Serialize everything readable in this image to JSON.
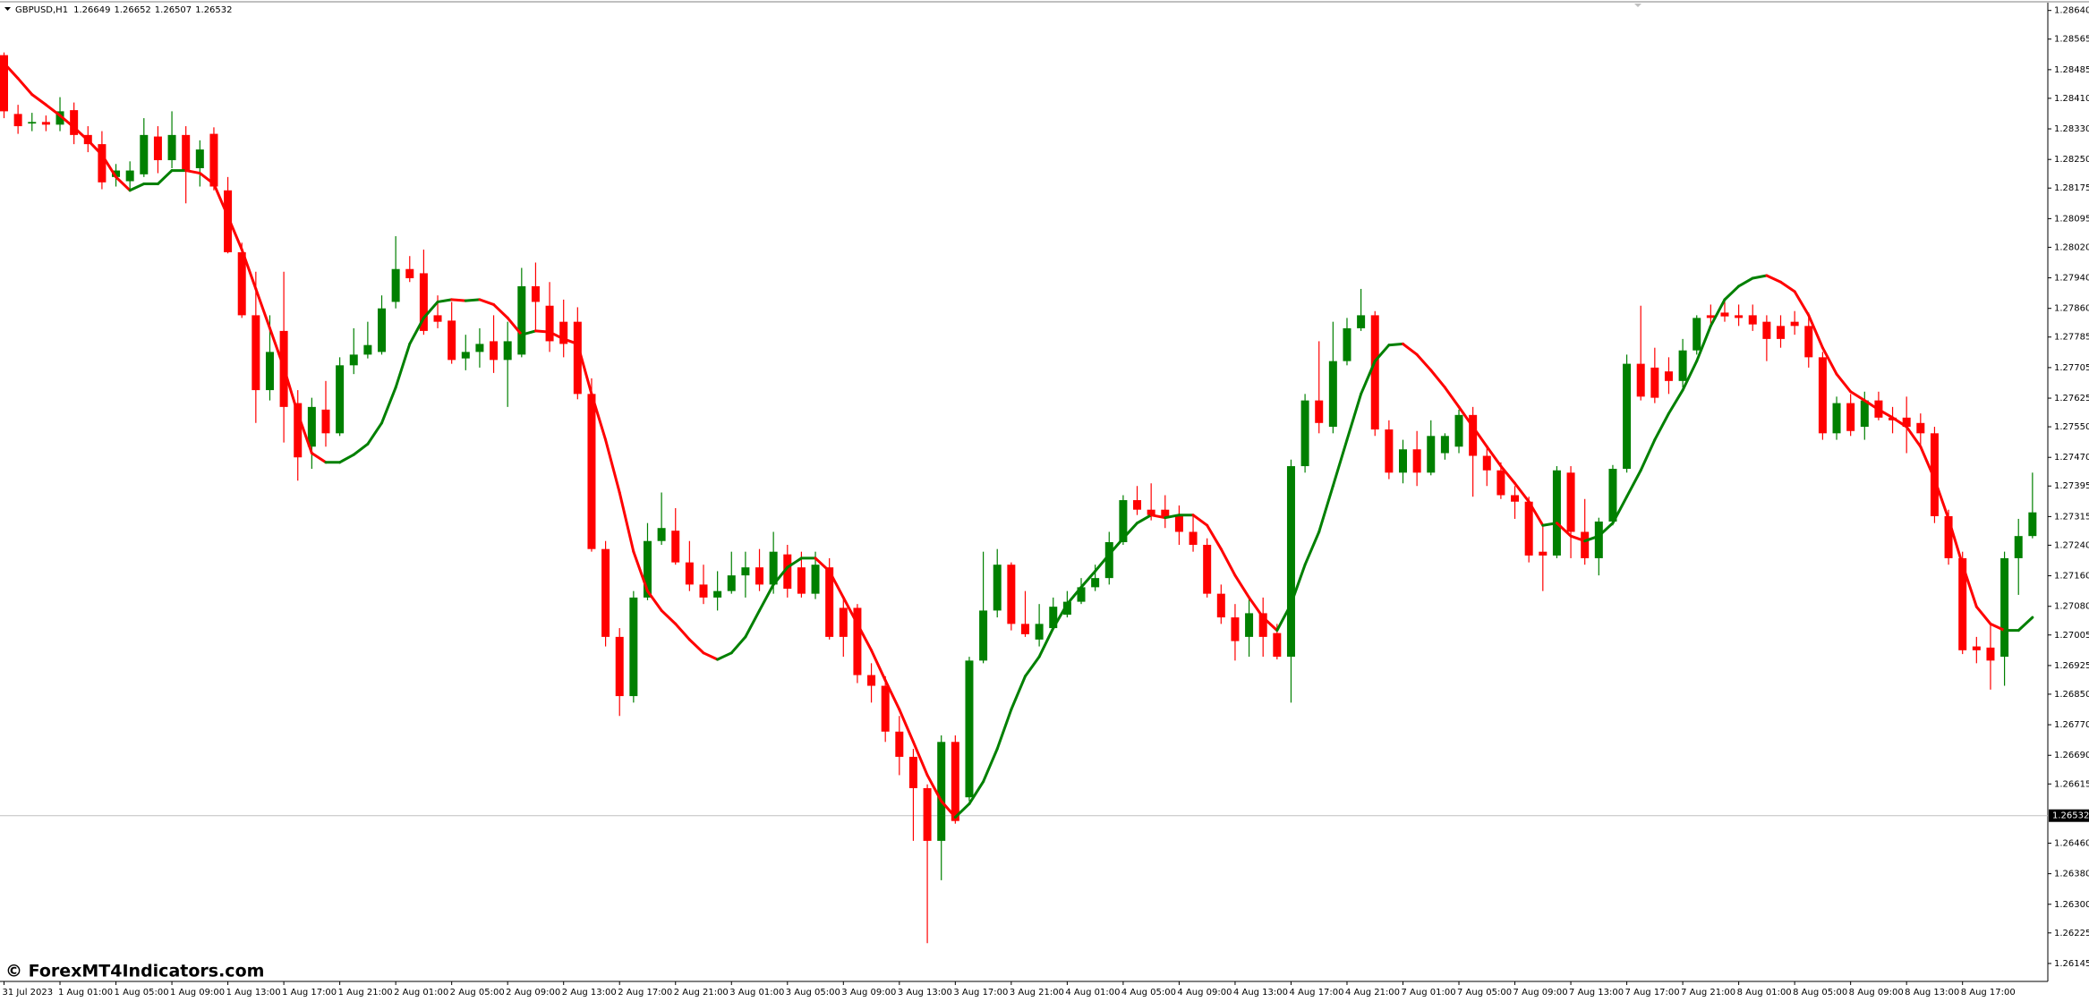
{
  "chart_data": {
    "type": "candlestick",
    "title": "GBPUSD,H1",
    "header_values": [
      1.26649,
      1.26652,
      1.26507,
      1.26532
    ],
    "watermark": "© ForexMT4Indicators.com",
    "up_color": "#008000",
    "down_color": "#ff0000",
    "grid": false,
    "categories": [
      "31 Jul 2023",
      null,
      null,
      null,
      "1 Aug 01:00",
      null,
      null,
      null,
      "1 Aug 05:00",
      null,
      null,
      null,
      "1 Aug 09:00",
      null,
      null,
      null,
      "1 Aug 13:00",
      null,
      null,
      null,
      "1 Aug 17:00",
      null,
      null,
      null,
      "1 Aug 21:00",
      null,
      null,
      null,
      "2 Aug 01:00",
      null,
      null,
      null,
      "2 Aug 05:00",
      null,
      null,
      null,
      "2 Aug 09:00",
      null,
      null,
      null,
      "2 Aug 13:00",
      null,
      null,
      null,
      "2 Aug 17:00",
      null,
      null,
      null,
      "2 Aug 21:00",
      null,
      null,
      null,
      "3 Aug 01:00",
      null,
      null,
      null,
      "3 Aug 05:00",
      null,
      null,
      null,
      "3 Aug 09:00",
      null,
      null,
      null,
      "3 Aug 13:00",
      null,
      null,
      null,
      "3 Aug 17:00",
      null,
      null,
      null,
      "3 Aug 21:00",
      null,
      null,
      null,
      "4 Aug 01:00",
      null,
      null,
      null,
      "4 Aug 05:00",
      null,
      null,
      null,
      "4 Aug 09:00",
      null,
      null,
      null,
      "4 Aug 13:00",
      null,
      null,
      null,
      "4 Aug 17:00",
      null,
      null,
      null,
      "4 Aug 21:00",
      null,
      null,
      null,
      "7 Aug 01:00",
      null,
      null,
      null,
      "7 Aug 05:00",
      null,
      null,
      null,
      "7 Aug 09:00",
      null,
      null,
      null,
      "7 Aug 13:00",
      null,
      null,
      null,
      "7 Aug 17:00",
      null,
      null,
      null,
      "7 Aug 21:00",
      null,
      null,
      null,
      "8 Aug 01:00",
      null,
      null,
      null,
      "8 Aug 05:00",
      null,
      null,
      null,
      "8 Aug 09:00",
      null,
      null,
      null,
      "8 Aug 13:00",
      null,
      null,
      null,
      "8 Aug 17:00",
      null,
      null,
      null,
      null,
      null
    ],
    "open": [
      1.28523,
      1.28369,
      1.28344,
      1.28348,
      1.28341,
      1.28379,
      1.28314,
      1.2829,
      1.28204,
      1.28193,
      1.28211,
      1.2831,
      1.28248,
      1.28314,
      1.28227,
      1.28317,
      1.28169,
      1.28007,
      1.27842,
      1.27646,
      1.27801,
      1.27612,
      1.27498,
      1.27595,
      1.27533,
      1.27711,
      1.27739,
      1.27746,
      1.27877,
      1.27963,
      1.27952,
      1.27842,
      1.27828,
      1.27729,
      1.27746,
      1.27774,
      1.27725,
      1.27739,
      1.27918,
      1.27867,
      1.27825,
      1.27825,
      1.27636,
      1.2723,
      1.27,
      1.26845,
      1.27103,
      1.27251,
      1.27278,
      1.27195,
      1.27137,
      1.27103,
      1.2712,
      1.27161,
      1.27182,
      1.27137,
      1.27216,
      1.27182,
      1.27113,
      1.27182,
      1.27076,
      1.27076,
      1.269,
      1.26872,
      1.26752,
      1.26686,
      1.26604,
      1.26466,
      1.26725,
      1.2658,
      1.26938,
      1.27069,
      1.27189,
      1.27034,
      1.26993,
      1.27023,
      1.27058,
      1.27092,
      1.2713,
      1.27154,
      1.27248,
      1.27358,
      1.27333,
      1.27333,
      1.27316,
      1.27275,
      1.27241,
      1.27113,
      1.27051,
      1.27,
      1.27062,
      1.2701,
      1.26948,
      1.27447,
      1.27619,
      1.2755,
      1.27722,
      1.27808,
      1.27842,
      1.27543,
      1.2743,
      1.27491,
      1.2743,
      1.27481,
      1.27498,
      1.27581,
      1.27474,
      1.27436,
      1.27371,
      1.27354,
      1.27223,
      1.27213,
      1.2743,
      1.27275,
      1.27206,
      1.27302,
      1.2744,
      1.27715,
      1.27705,
      1.27695,
      1.2767,
      1.2775,
      1.27842,
      1.27849,
      1.27842,
      1.27842,
      1.27825,
      1.27814,
      1.27825,
      1.27814,
      1.27732,
      1.27533,
      1.27612,
      1.2755,
      1.27619,
      1.27574,
      1.27574,
      1.2756,
      1.27533,
      1.27316,
      1.27206,
      1.26975,
      1.26972,
      1.26948,
      1.27206,
      1.27264
    ],
    "high": [
      1.2853,
      1.28393,
      1.28372,
      1.28365,
      1.28413,
      1.28399,
      1.28337,
      1.28324,
      1.28238,
      1.28245,
      1.28358,
      1.28337,
      1.28376,
      1.28337,
      1.283,
      1.28334,
      1.28204,
      1.28032,
      1.27956,
      1.27842,
      1.27956,
      1.27646,
      1.27626,
      1.2767,
      1.27732,
      1.27808,
      1.27825,
      1.27894,
      1.28049,
      1.27997,
      1.28014,
      1.27894,
      1.27877,
      1.27791,
      1.27808,
      1.27842,
      1.27825,
      1.27966,
      1.2798,
      1.27929,
      1.27883,
      1.27863,
      1.27677,
      1.27251,
      1.27023,
      1.2712,
      1.27298,
      1.27378,
      1.27337,
      1.27251,
      1.27189,
      1.27172,
      1.27223,
      1.27223,
      1.2723,
      1.27275,
      1.27241,
      1.27223,
      1.27223,
      1.27206,
      1.27103,
      1.27086,
      1.26931,
      1.26897,
      1.26793,
      1.26707,
      1.26614,
      1.26742,
      1.26742,
      1.26948,
      1.27223,
      1.2723,
      1.27195,
      1.2712,
      1.27086,
      1.27103,
      1.2712,
      1.27154,
      1.27189,
      1.27275,
      1.27371,
      1.27395,
      1.27402,
      1.27371,
      1.27344,
      1.27319,
      1.27258,
      1.27137,
      1.27086,
      1.27103,
      1.27103,
      1.27034,
      1.27464,
      1.27636,
      1.27774,
      1.27825,
      1.27835,
      1.27911,
      1.27853,
      1.27567,
      1.27516,
      1.27539,
      1.27567,
      1.27533,
      1.27595,
      1.27602,
      1.27498,
      1.27457,
      1.27395,
      1.27367,
      1.27292,
      1.27447,
      1.27447,
      1.27361,
      1.27312,
      1.2745,
      1.27739,
      1.27867,
      1.27757,
      1.27732,
      1.2778,
      1.27842,
      1.2787,
      1.27877,
      1.2787,
      1.2787,
      1.27842,
      1.27842,
      1.27853,
      1.27849,
      1.27746,
      1.27629,
      1.27636,
      1.27642,
      1.27642,
      1.27602,
      1.27629,
      1.27585,
      1.2755,
      1.27333,
      1.27223,
      1.27,
      1.27034,
      1.27223,
      1.27309,
      1.2743
    ],
    "low": [
      1.28358,
      1.28317,
      1.28324,
      1.28324,
      1.28324,
      1.2829,
      1.28269,
      1.28172,
      1.28179,
      1.28172,
      1.28204,
      1.28214,
      1.28227,
      1.28135,
      1.28179,
      1.28169,
      1.28004,
      1.27835,
      1.2756,
      1.27619,
      1.27509,
      1.27409,
      1.2744,
      1.27498,
      1.27526,
      1.27688,
      1.27729,
      1.27739,
      1.2786,
      1.27929,
      1.27791,
      1.27808,
      1.27715,
      1.27698,
      1.27705,
      1.27691,
      1.27602,
      1.27732,
      1.27801,
      1.27746,
      1.27732,
      1.27622,
      1.27223,
      1.26975,
      1.26793,
      1.26828,
      1.27096,
      1.27241,
      1.27189,
      1.2712,
      1.27086,
      1.27069,
      1.27113,
      1.27103,
      1.2712,
      1.27113,
      1.27103,
      1.27103,
      1.27099,
      1.26993,
      1.26948,
      1.26879,
      1.26828,
      1.26725,
      1.26638,
      1.26466,
      1.26198,
      1.26363,
      1.26511,
      1.2657,
      1.26931,
      1.27051,
      1.27017,
      1.27,
      1.26975,
      1.27017,
      1.27051,
      1.27086,
      1.2712,
      1.27137,
      1.27241,
      1.27319,
      1.27305,
      1.27285,
      1.27241,
      1.27223,
      1.27103,
      1.27034,
      1.26938,
      1.26948,
      1.26948,
      1.26941,
      1.26828,
      1.2743,
      1.27533,
      1.27533,
      1.27711,
      1.27801,
      1.27526,
      1.27413,
      1.27402,
      1.27395,
      1.27423,
      1.27464,
      1.27481,
      1.27367,
      1.27395,
      1.27361,
      1.27309,
      1.27195,
      1.2712,
      1.27206,
      1.27206,
      1.27189,
      1.27161,
      1.27292,
      1.2743,
      1.27619,
      1.27612,
      1.27636,
      1.27653,
      1.27739,
      1.27808,
      1.27825,
      1.27814,
      1.27801,
      1.27722,
      1.27757,
      1.27791,
      1.27705,
      1.27516,
      1.27516,
      1.27526,
      1.27516,
      1.27567,
      1.27533,
      1.27481,
      1.27498,
      1.27298,
      1.27189,
      1.26955,
      1.26931,
      1.26862,
      1.26872,
      1.2711,
      1.27258
    ],
    "close": [
      1.28376,
      1.28337,
      1.28348,
      1.28341,
      1.28376,
      1.28314,
      1.2829,
      1.2819,
      1.28221,
      1.28221,
      1.28314,
      1.28248,
      1.28314,
      1.28221,
      1.28276,
      1.28179,
      1.28007,
      1.27842,
      1.27646,
      1.27746,
      1.27602,
      1.2747,
      1.27602,
      1.27533,
      1.27711,
      1.27739,
      1.27764,
      1.2786,
      1.27963,
      1.27939,
      1.27801,
      1.27825,
      1.27725,
      1.27746,
      1.27767,
      1.27725,
      1.27774,
      1.27918,
      1.27877,
      1.27774,
      1.27767,
      1.27636,
      1.2723,
      1.27,
      1.26845,
      1.27103,
      1.27251,
      1.27285,
      1.27195,
      1.27137,
      1.27103,
      1.2712,
      1.27161,
      1.27182,
      1.27137,
      1.27223,
      1.27126,
      1.27113,
      1.27189,
      1.27,
      1.27,
      1.269,
      1.26872,
      1.26752,
      1.26686,
      1.26604,
      1.26466,
      1.26725,
      1.26518,
      1.26938,
      1.27069,
      1.27189,
      1.27034,
      1.27007,
      1.27034,
      1.27079,
      1.27092,
      1.2713,
      1.27154,
      1.27248,
      1.27358,
      1.27333,
      1.27319,
      1.27316,
      1.27275,
      1.27241,
      1.27113,
      1.27051,
      1.26989,
      1.27062,
      1.27,
      1.26948,
      1.27447,
      1.27619,
      1.2756,
      1.27722,
      1.27808,
      1.27842,
      1.27543,
      1.2743,
      1.27491,
      1.2743,
      1.27526,
      1.27526,
      1.27581,
      1.27474,
      1.27436,
      1.27371,
      1.27354,
      1.27213,
      1.27213,
      1.27436,
      1.27275,
      1.27206,
      1.27302,
      1.2744,
      1.27715,
      1.27629,
      1.27626,
      1.2767,
      1.2775,
      1.27835,
      1.27835,
      1.27839,
      1.27835,
      1.27818,
      1.2778,
      1.2778,
      1.27814,
      1.27732,
      1.27533,
      1.27612,
      1.27539,
      1.27619,
      1.27574,
      1.27567,
      1.2755,
      1.27533,
      1.27316,
      1.27206,
      1.26965,
      1.26965,
      1.26938,
      1.27206,
      1.27264,
      1.27326
    ],
    "ma": {
      "up_color": "#008000",
      "down_color": "#ff0000",
      "values": [
        1.28502,
        1.28462,
        1.2842,
        1.28393,
        1.28365,
        1.28334,
        1.283,
        1.28262,
        1.28204,
        1.28169,
        1.28186,
        1.28186,
        1.28221,
        1.28221,
        1.28214,
        1.28186,
        1.28101,
        1.28014,
        1.27911,
        1.27808,
        1.27705,
        1.27585,
        1.27481,
        1.27457,
        1.27457,
        1.27477,
        1.27505,
        1.2756,
        1.27653,
        1.27767,
        1.27835,
        1.27877,
        1.27883,
        1.2788,
        1.27883,
        1.2787,
        1.27835,
        1.27791,
        1.27801,
        1.27798,
        1.2778,
        1.27767,
        1.27636,
        1.27516,
        1.27378,
        1.27223,
        1.2712,
        1.27069,
        1.27034,
        1.26993,
        1.26958,
        1.26941,
        1.26958,
        1.27,
        1.27069,
        1.27137,
        1.27182,
        1.27206,
        1.27206,
        1.27172,
        1.27103,
        1.27034,
        1.26965,
        1.26886,
        1.2681,
        1.26725,
        1.26638,
        1.2657,
        1.26528,
        1.26563,
        1.26621,
        1.26707,
        1.2681,
        1.26897,
        1.26948,
        1.27023,
        1.27086,
        1.2713,
        1.27172,
        1.27216,
        1.27258,
        1.27298,
        1.27319,
        1.27312,
        1.27319,
        1.27319,
        1.27292,
        1.2723,
        1.27161,
        1.27103,
        1.27051,
        1.27017,
        1.27086,
        1.27189,
        1.27275,
        1.27395,
        1.27516,
        1.27636,
        1.27722,
        1.27764,
        1.27767,
        1.27739,
        1.27698,
        1.27653,
        1.27602,
        1.2755,
        1.27498,
        1.27447,
        1.27402,
        1.27354,
        1.27292,
        1.27298,
        1.27264,
        1.27251,
        1.27264,
        1.27298,
        1.27367,
        1.27436,
        1.27516,
        1.27585,
        1.27646,
        1.27722,
        1.27814,
        1.27883,
        1.27918,
        1.27939,
        1.27946,
        1.27929,
        1.27904,
        1.27842,
        1.27757,
        1.27688,
        1.27642,
        1.27619,
        1.27595,
        1.27574,
        1.2755,
        1.27498,
        1.27413,
        1.27309,
        1.27189,
        1.27079,
        1.27034,
        1.27017,
        1.27017,
        1.27051
      ]
    },
    "current_price": 1.26532,
    "ylim": [
      1.26098,
      1.28658
    ],
    "yticks": [
      {
        "value": 1.2864,
        "label": "1.28640"
      },
      1.28565,
      1.28485,
      {
        "value": 1.2841,
        "label": "1.28410"
      },
      {
        "value": 1.2833,
        "label": "1.28330"
      },
      {
        "value": 1.2825,
        "label": "1.28250"
      },
      1.28175,
      1.28095,
      {
        "value": 1.2802,
        "label": "1.28020"
      },
      {
        "value": 1.2794,
        "label": "1.27940"
      },
      {
        "value": 1.2786,
        "label": "1.27860"
      },
      1.27785,
      1.27705,
      1.27625,
      {
        "value": 1.2755,
        "label": "1.27550"
      },
      {
        "value": 1.2747,
        "label": "1.27470"
      },
      1.27395,
      1.27315,
      {
        "value": 1.2724,
        "label": "1.27240"
      },
      {
        "value": 1.2716,
        "label": "1.27160"
      },
      {
        "value": 1.2708,
        "label": "1.27080"
      },
      1.27005,
      1.26925,
      {
        "value": 1.2685,
        "label": "1.26850"
      },
      {
        "value": 1.2677,
        "label": "1.26770"
      },
      {
        "value": 1.2669,
        "label": "1.26690"
      },
      1.26615,
      {
        "value": 1.2646,
        "label": "1.26460"
      },
      {
        "value": 1.2638,
        "label": "1.26380"
      },
      {
        "value": 1.263,
        "label": "1.26300"
      },
      1.26225,
      1.26145
    ]
  }
}
